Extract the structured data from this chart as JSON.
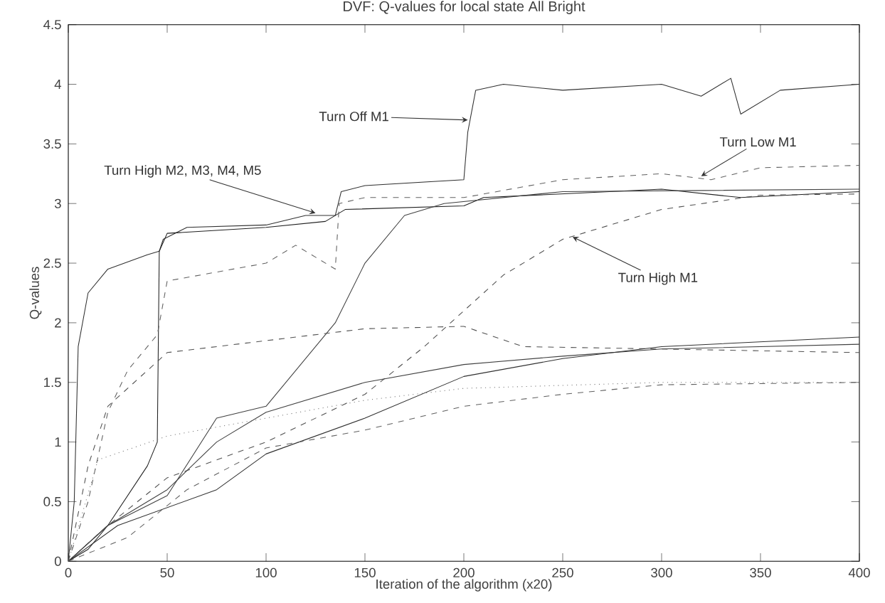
{
  "chart_data": {
    "type": "line",
    "title": "DVF: Q-values for local state All Bright",
    "xlabel": "Iteration of the algorithm (x20)",
    "ylabel": "Q-values",
    "xlim": [
      0,
      400
    ],
    "ylim": [
      0,
      4.5
    ],
    "xticks": [
      0,
      50,
      100,
      150,
      200,
      250,
      300,
      350,
      400
    ],
    "yticks": [
      0,
      0.5,
      1,
      1.5,
      2,
      2.5,
      3,
      3.5,
      4,
      4.5
    ],
    "grid": false,
    "series": [
      {
        "color": "#303030",
        "line_style": "solid",
        "x": [
          0,
          3,
          5,
          10,
          20,
          40,
          46,
          48,
          60,
          100,
          120,
          135,
          138,
          150,
          200,
          202,
          206,
          220,
          250,
          300,
          320,
          335,
          340,
          360,
          400
        ],
        "values": [
          0,
          0.5,
          1.8,
          2.25,
          2.45,
          2.57,
          2.6,
          2.7,
          2.8,
          2.82,
          2.9,
          2.9,
          3.1,
          3.15,
          3.2,
          3.6,
          3.95,
          4.0,
          3.95,
          4.0,
          3.9,
          4.05,
          3.75,
          3.95,
          4.0
        ]
      },
      {
        "color": "#202020",
        "line_style": "solid",
        "x": [
          0,
          10,
          20,
          40,
          45,
          46,
          50,
          100,
          130,
          135,
          140,
          200,
          210,
          300,
          340,
          400
        ],
        "values": [
          0,
          0.1,
          0.3,
          0.8,
          1.0,
          2.6,
          2.75,
          2.8,
          2.85,
          2.9,
          2.95,
          2.98,
          3.05,
          3.12,
          3.05,
          3.1
        ]
      },
      {
        "color": "#606060",
        "line_style": "dashed",
        "x": [
          0,
          10,
          20,
          30,
          45,
          50,
          100,
          115,
          135,
          137,
          150,
          200,
          250,
          300,
          325,
          350,
          400
        ],
        "values": [
          0,
          0.5,
          1.25,
          1.6,
          1.9,
          2.35,
          2.5,
          2.65,
          2.45,
          3.0,
          3.05,
          3.05,
          3.2,
          3.25,
          3.2,
          3.3,
          3.32
        ]
      },
      {
        "color": "#505050",
        "line_style": "dashed",
        "x": [
          0,
          20,
          50,
          100,
          150,
          180,
          200,
          220,
          250,
          300,
          350,
          400
        ],
        "values": [
          0,
          0.3,
          0.7,
          1.0,
          1.4,
          1.8,
          2.1,
          2.4,
          2.7,
          2.95,
          3.07,
          3.08
        ]
      },
      {
        "color": "#404040",
        "line_style": "solid",
        "x": [
          0,
          20,
          50,
          75,
          100,
          130,
          135,
          150,
          170,
          190,
          250,
          400
        ],
        "values": [
          0,
          0.3,
          0.55,
          1.2,
          1.3,
          1.9,
          2.0,
          2.5,
          2.9,
          3.0,
          3.1,
          3.12
        ]
      },
      {
        "color": "#505050",
        "line_style": "dashed",
        "x": [
          0,
          10,
          20,
          40,
          50,
          100,
          150,
          200,
          230,
          300,
          400
        ],
        "values": [
          0,
          0.8,
          1.3,
          1.6,
          1.75,
          1.85,
          1.95,
          1.97,
          1.8,
          1.78,
          1.75
        ]
      },
      {
        "color": "#404040",
        "line_style": "solid",
        "x": [
          0,
          20,
          50,
          75,
          100,
          150,
          200,
          250,
          300,
          400
        ],
        "values": [
          0,
          0.3,
          0.6,
          1.0,
          1.25,
          1.5,
          1.65,
          1.72,
          1.78,
          1.82
        ]
      },
      {
        "color": "#303030",
        "line_style": "solid",
        "x": [
          0,
          25,
          50,
          75,
          100,
          150,
          200,
          250,
          300,
          400
        ],
        "values": [
          0,
          0.3,
          0.45,
          0.6,
          0.9,
          1.2,
          1.55,
          1.7,
          1.8,
          1.88
        ]
      },
      {
        "color": "#606060",
        "line_style": "dashed",
        "x": [
          0,
          30,
          60,
          100,
          150,
          200,
          250,
          300,
          400
        ],
        "values": [
          0,
          0.2,
          0.6,
          0.95,
          1.1,
          1.3,
          1.4,
          1.48,
          1.5
        ]
      },
      {
        "color": "#707070",
        "line_style": "dotted",
        "x": [
          0,
          15,
          50,
          100,
          150,
          200,
          300,
          400
        ],
        "values": [
          0,
          0.85,
          1.05,
          1.2,
          1.35,
          1.45,
          1.5,
          1.5
        ]
      }
    ],
    "annotations": [
      {
        "text": "Turn Off M1",
        "x": 202,
        "y": 3.7
      },
      {
        "text": "Turn Low M1",
        "x": 320,
        "y": 3.23
      },
      {
        "text": "Turn High M2, M3, M4, M5",
        "x": 125,
        "y": 2.92
      },
      {
        "text": "Turn High M1",
        "x": 255,
        "y": 2.72
      }
    ]
  }
}
